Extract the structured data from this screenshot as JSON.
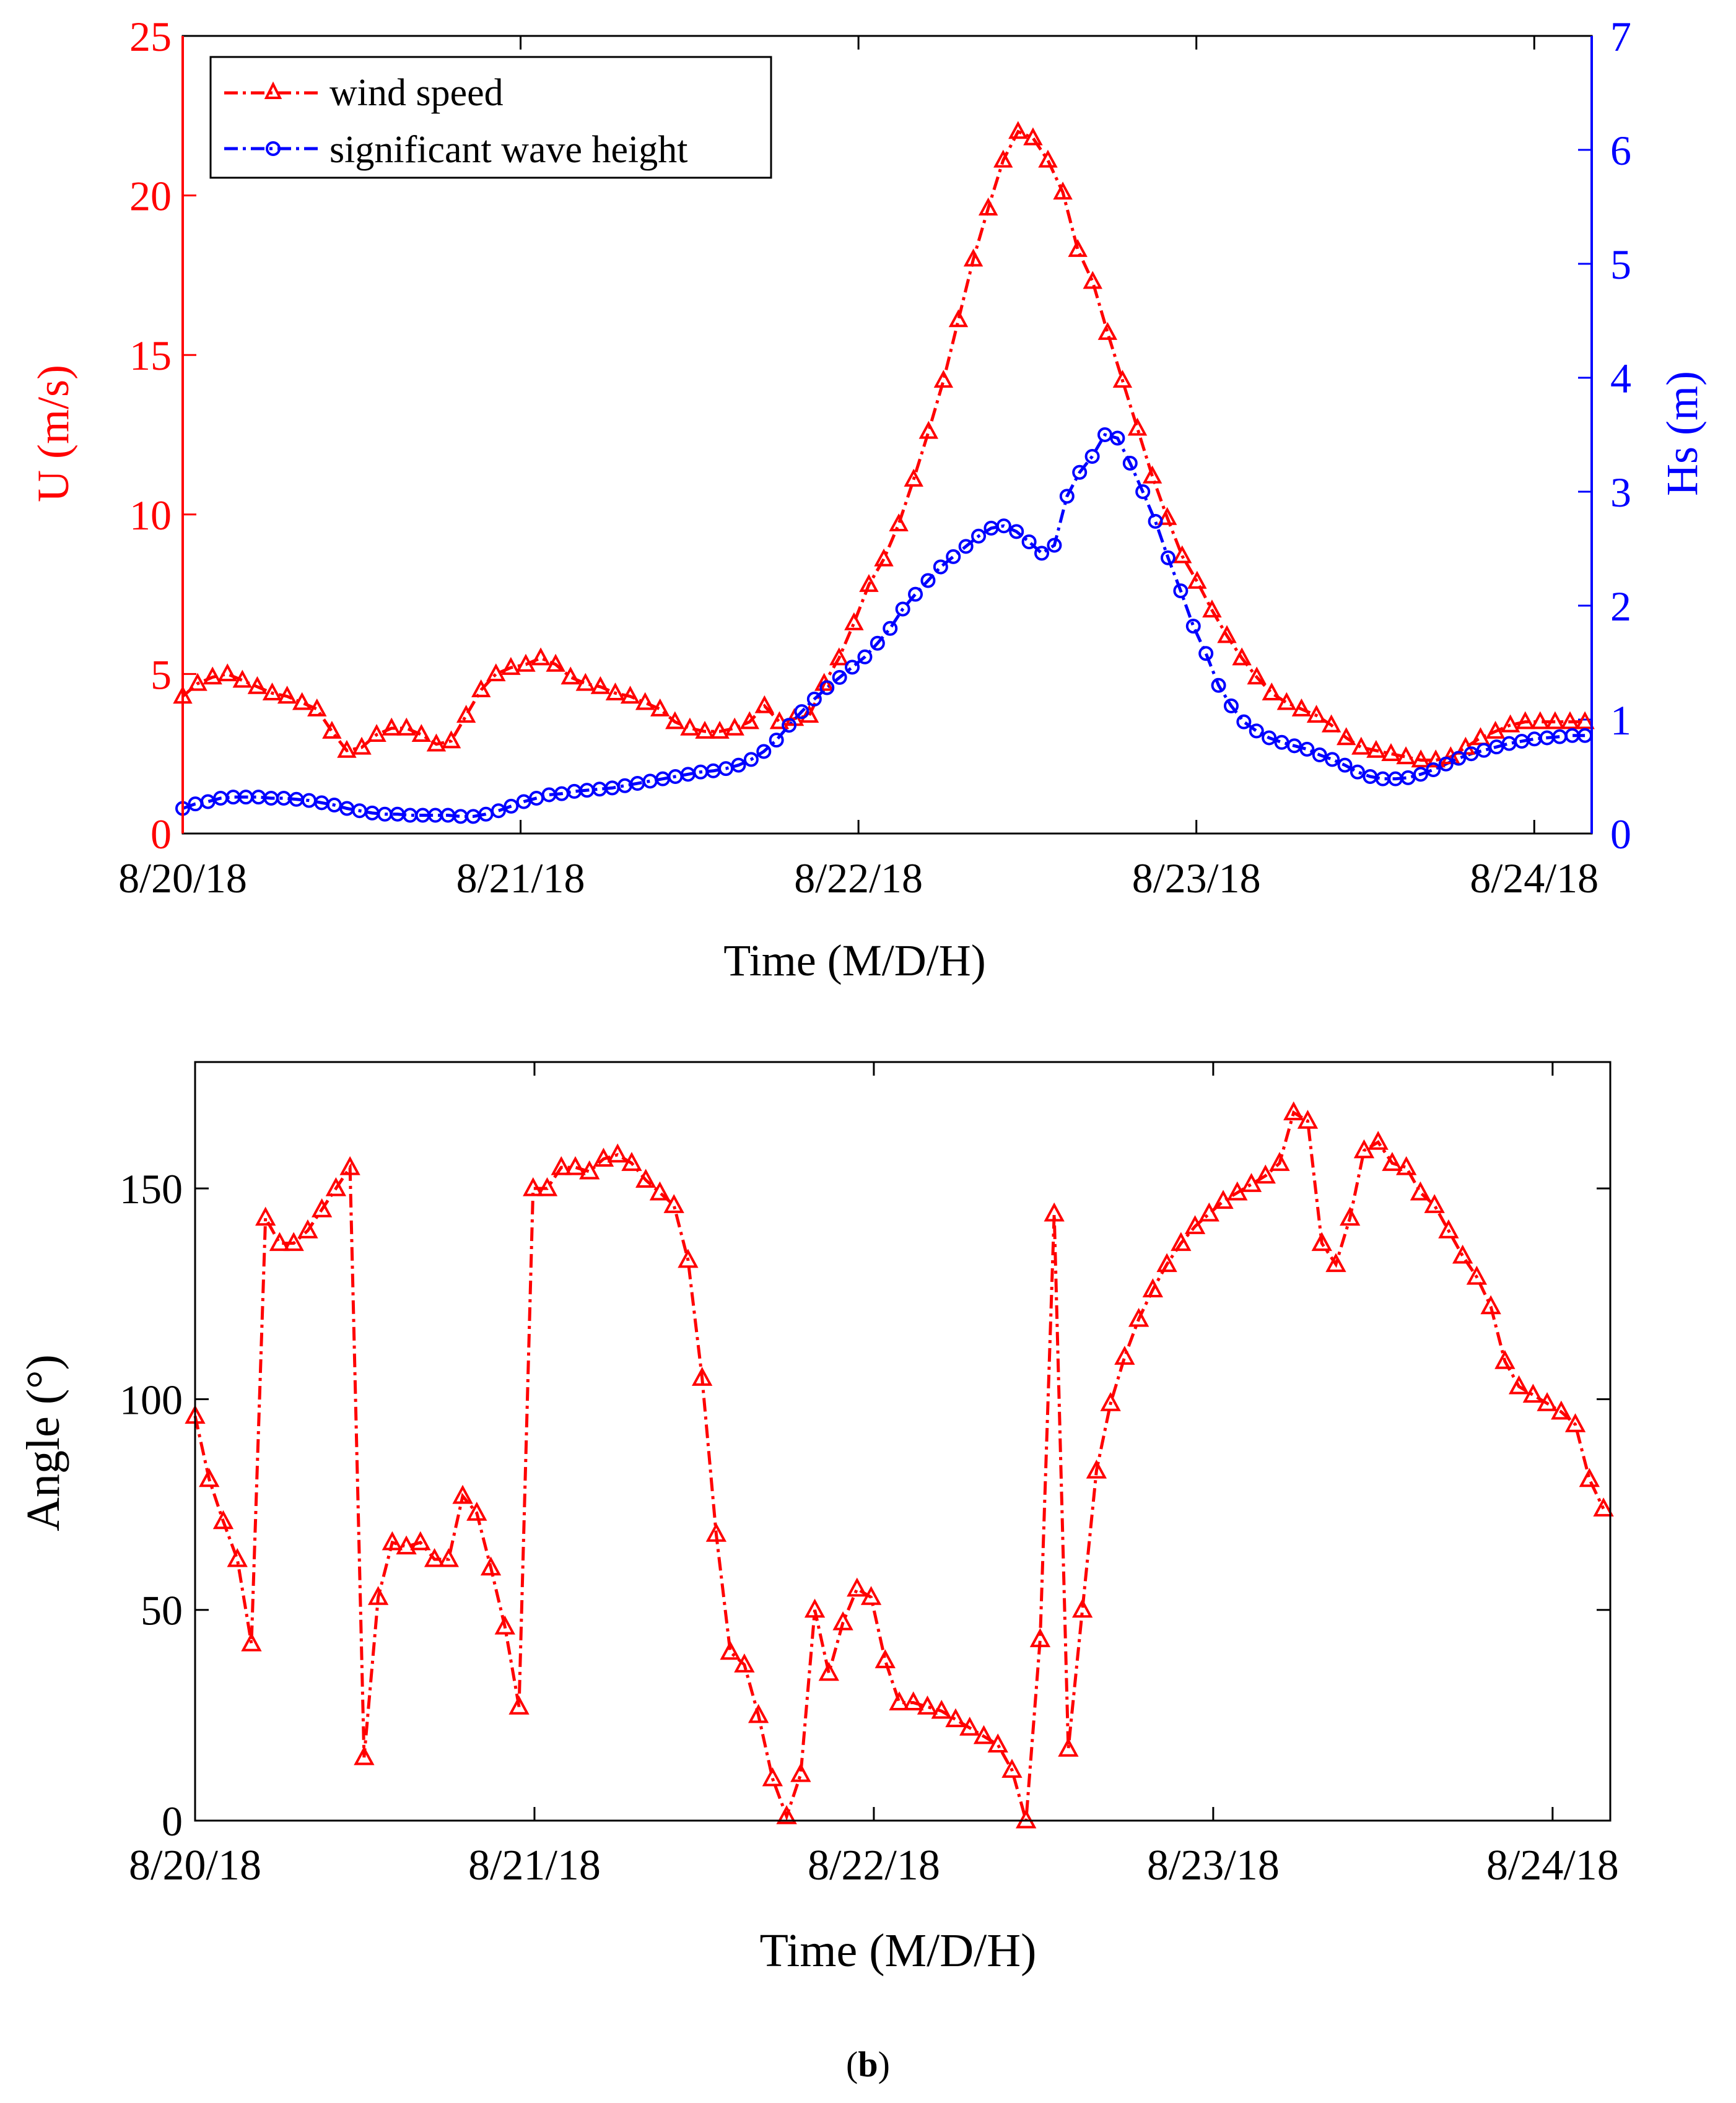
{
  "colors": {
    "red": "#ff0000",
    "blue": "#0000ff",
    "axis": "#000000",
    "background": "#ffffff"
  },
  "panel_label": {
    "open": "(",
    "letter": "b",
    "close": ")"
  },
  "chart_data": [
    {
      "type": "line",
      "id": "top",
      "title": "",
      "xlabel": "Time (M/D/H)",
      "ylabel": "U (m/s)",
      "ylabel_right": "Hs (m)",
      "xlim": [
        0,
        4.17
      ],
      "ylim": [
        0,
        25
      ],
      "ylim_right": [
        0,
        7
      ],
      "xticks": [
        0,
        1,
        2,
        3,
        4
      ],
      "xtick_labels": [
        "8/20/18",
        "8/21/18",
        "8/22/18",
        "8/23/18",
        "8/24/18"
      ],
      "yticks": [
        0,
        5,
        10,
        15,
        20,
        25
      ],
      "yticks_right": [
        0,
        1,
        2,
        3,
        4,
        5,
        6,
        7
      ],
      "legend_position": "top-left",
      "series": [
        {
          "name": "wind speed",
          "axis": "left",
          "marker": "triangle",
          "color": "#ff0000",
          "values": [
            4.3,
            4.7,
            4.9,
            5.0,
            4.8,
            4.6,
            4.4,
            4.3,
            4.1,
            3.9,
            3.2,
            2.6,
            2.7,
            3.1,
            3.3,
            3.3,
            3.1,
            2.8,
            2.9,
            3.7,
            4.5,
            5.0,
            5.2,
            5.3,
            5.5,
            5.3,
            4.9,
            4.7,
            4.6,
            4.4,
            4.3,
            4.1,
            3.9,
            3.5,
            3.3,
            3.2,
            3.2,
            3.3,
            3.5,
            4.0,
            3.5,
            3.6,
            3.7,
            4.7,
            5.5,
            6.6,
            7.8,
            8.6,
            9.7,
            11.1,
            12.6,
            14.2,
            16.1,
            18.0,
            19.6,
            21.1,
            22.0,
            21.8,
            21.1,
            20.1,
            18.3,
            17.3,
            15.7,
            14.2,
            12.7,
            11.2,
            9.9,
            8.7,
            7.9,
            7.0,
            6.2,
            5.5,
            4.9,
            4.4,
            4.1,
            3.9,
            3.7,
            3.4,
            3.0,
            2.7,
            2.6,
            2.5,
            2.4,
            2.3,
            2.3,
            2.4,
            2.7,
            3.0,
            3.2,
            3.4,
            3.5,
            3.5,
            3.5,
            3.5,
            3.5
          ]
        },
        {
          "name": "significant wave height",
          "axis": "right",
          "marker": "circle",
          "color": "#0000ff",
          "values": [
            0.22,
            0.26,
            0.28,
            0.31,
            0.32,
            0.32,
            0.32,
            0.31,
            0.31,
            0.3,
            0.29,
            0.27,
            0.25,
            0.22,
            0.2,
            0.18,
            0.17,
            0.17,
            0.16,
            0.16,
            0.16,
            0.16,
            0.15,
            0.15,
            0.17,
            0.2,
            0.24,
            0.28,
            0.31,
            0.34,
            0.35,
            0.37,
            0.38,
            0.39,
            0.4,
            0.42,
            0.44,
            0.46,
            0.48,
            0.5,
            0.52,
            0.54,
            0.55,
            0.57,
            0.6,
            0.65,
            0.72,
            0.82,
            0.95,
            1.07,
            1.18,
            1.28,
            1.37,
            1.46,
            1.55,
            1.67,
            1.8,
            1.97,
            2.1,
            2.22,
            2.34,
            2.43,
            2.52,
            2.61,
            2.68,
            2.7,
            2.65,
            2.56,
            2.46,
            2.53,
            2.96,
            3.17,
            3.31,
            3.5,
            3.47,
            3.25,
            3.0,
            2.74,
            2.42,
            2.13,
            1.82,
            1.58,
            1.3,
            1.12,
            0.98,
            0.9,
            0.84,
            0.8,
            0.77,
            0.74,
            0.69,
            0.65,
            0.6,
            0.54,
            0.5,
            0.48,
            0.48,
            0.49,
            0.52,
            0.56,
            0.61,
            0.66,
            0.7,
            0.73,
            0.76,
            0.79,
            0.81,
            0.83,
            0.84,
            0.85,
            0.86,
            0.86
          ]
        }
      ]
    },
    {
      "type": "line",
      "id": "bottom",
      "title": "",
      "xlabel": "Time (M/D/H)",
      "ylabel": "Angle (°)",
      "xlim": [
        0,
        4.17
      ],
      "ylim": [
        0,
        180
      ],
      "xticks": [
        0,
        1,
        2,
        3,
        4
      ],
      "xtick_labels": [
        "8/20/18",
        "8/21/18",
        "8/22/18",
        "8/23/18",
        "8/24/18"
      ],
      "yticks": [
        0,
        50,
        100,
        150
      ],
      "series": [
        {
          "name": "angle",
          "marker": "triangle",
          "color": "#ff0000",
          "values": [
            96,
            81,
            71,
            62,
            42,
            143,
            137,
            137,
            140,
            145,
            150,
            155,
            15,
            53,
            66,
            65,
            66,
            62,
            62,
            77,
            73,
            60,
            46,
            27,
            150,
            150,
            155,
            155,
            154,
            157,
            158,
            156,
            152,
            149,
            146,
            133,
            105,
            68,
            40,
            37,
            25,
            10,
            1,
            11,
            50,
            35,
            47,
            55,
            53,
            38,
            28,
            28,
            27,
            26,
            24,
            22,
            20,
            18,
            12,
            0,
            43,
            144,
            17,
            50,
            83,
            99,
            110,
            119,
            126,
            132,
            137,
            141,
            144,
            147,
            149,
            151,
            153,
            156,
            168,
            166,
            137,
            132,
            143,
            159,
            161,
            156,
            155,
            149,
            146,
            140,
            134,
            129,
            122,
            109,
            103,
            101,
            99,
            97,
            94,
            81,
            74
          ]
        }
      ]
    }
  ]
}
